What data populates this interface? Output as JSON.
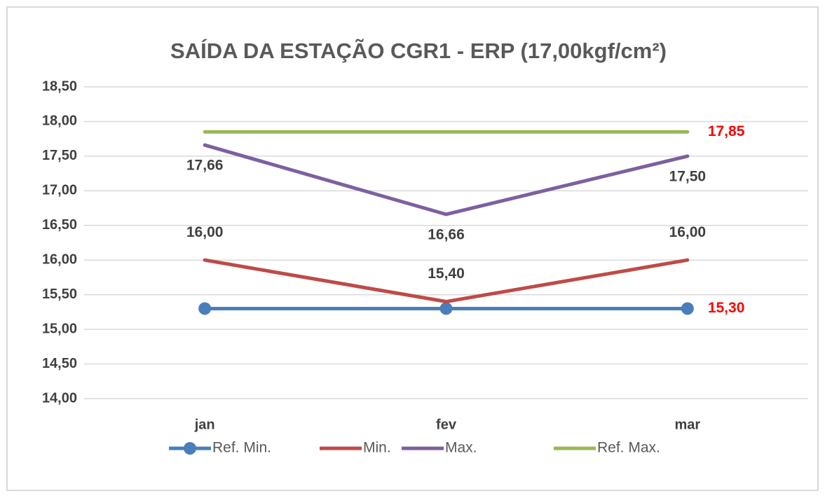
{
  "chart_data": {
    "type": "line",
    "title": "SAÍDA DA ESTAÇÃO CGR1 - ERP (17,00kgf/cm²)",
    "categories": [
      "jan",
      "fev",
      "mar"
    ],
    "series": [
      {
        "name": "Ref. Min.",
        "color": "#4a7ebb",
        "marker": "circle",
        "label_position": "right",
        "label_color": "#ff0000",
        "values": [
          15.3,
          15.3,
          15.3
        ],
        "value_labels": [
          null,
          null,
          "15,30"
        ]
      },
      {
        "name": "Min.",
        "color": "#be4b48",
        "label_position": "above",
        "label_color": "#404040",
        "values": [
          16.0,
          15.4,
          16.0
        ],
        "value_labels": [
          "16,00",
          "15,40",
          "16,00"
        ]
      },
      {
        "name": "Max.",
        "color": "#7d60a0",
        "label_position": "below",
        "label_color": "#404040",
        "values": [
          17.66,
          16.66,
          17.5
        ],
        "value_labels": [
          "17,66",
          "16,66",
          "17,50"
        ]
      },
      {
        "name": "Ref. Max.",
        "color": "#98b954",
        "label_position": "right",
        "label_color": "#ff0000",
        "values": [
          17.85,
          17.85,
          17.85
        ],
        "value_labels": [
          null,
          null,
          "17,85"
        ]
      }
    ],
    "ylim": [
      14,
      18.5
    ],
    "yticks": [
      {
        "value": 14,
        "label": "14,00"
      },
      {
        "value": 14.5,
        "label": "14,50"
      },
      {
        "value": 15,
        "label": "15,00"
      },
      {
        "value": 15.5,
        "label": "15,50"
      },
      {
        "value": 16,
        "label": "16,00"
      },
      {
        "value": 16.5,
        "label": "16,50"
      },
      {
        "value": 17,
        "label": "17,00"
      },
      {
        "value": 17.5,
        "label": "17,50"
      },
      {
        "value": 18,
        "label": "18,00"
      },
      {
        "value": 18.5,
        "label": "18,50"
      }
    ],
    "grid": true,
    "legend": "bottom"
  }
}
